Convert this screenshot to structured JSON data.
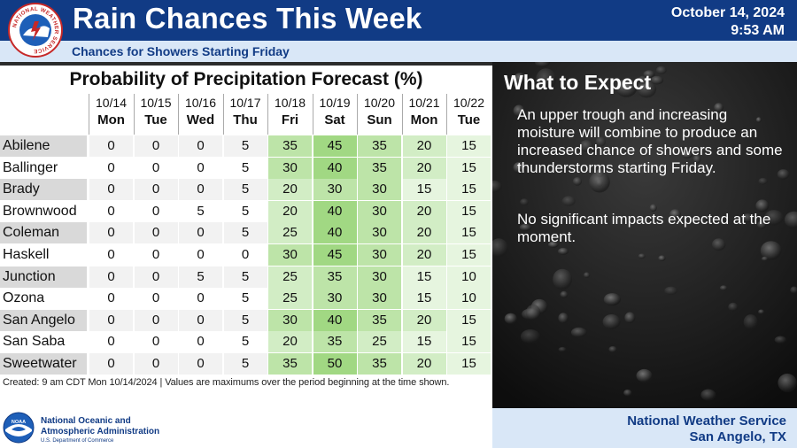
{
  "header": {
    "title": "Rain Chances This Week",
    "date": "October 14, 2024",
    "time": "9:53 AM",
    "subtitle": "Chances for Showers Starting Friday",
    "logo_text": "NATIONAL WEATHER SERVICE"
  },
  "table": {
    "title": "Probability of Precipitation Forecast (%)",
    "columns": [
      {
        "date": "10/14",
        "day": "Mon"
      },
      {
        "date": "10/15",
        "day": "Tue"
      },
      {
        "date": "10/16",
        "day": "Wed"
      },
      {
        "date": "10/17",
        "day": "Thu"
      },
      {
        "date": "10/18",
        "day": "Fri"
      },
      {
        "date": "10/19",
        "day": "Sat"
      },
      {
        "date": "10/20",
        "day": "Sun"
      },
      {
        "date": "10/21",
        "day": "Mon"
      },
      {
        "date": "10/22",
        "day": "Tue"
      }
    ],
    "rows": [
      {
        "city": "Abilene",
        "values": [
          0,
          0,
          0,
          5,
          35,
          45,
          35,
          20,
          15
        ]
      },
      {
        "city": "Ballinger",
        "values": [
          0,
          0,
          0,
          5,
          30,
          40,
          35,
          20,
          15
        ]
      },
      {
        "city": "Brady",
        "values": [
          0,
          0,
          0,
          5,
          20,
          30,
          30,
          15,
          15
        ]
      },
      {
        "city": "Brownwood",
        "values": [
          0,
          0,
          5,
          5,
          20,
          40,
          30,
          20,
          15
        ]
      },
      {
        "city": "Coleman",
        "values": [
          0,
          0,
          0,
          5,
          25,
          40,
          30,
          20,
          15
        ]
      },
      {
        "city": "Haskell",
        "values": [
          0,
          0,
          0,
          0,
          30,
          45,
          30,
          20,
          15
        ]
      },
      {
        "city": "Junction",
        "values": [
          0,
          0,
          5,
          5,
          25,
          35,
          30,
          15,
          10
        ]
      },
      {
        "city": "Ozona",
        "values": [
          0,
          0,
          0,
          5,
          25,
          30,
          30,
          15,
          10
        ]
      },
      {
        "city": "San Angelo",
        "values": [
          0,
          0,
          0,
          5,
          30,
          40,
          35,
          20,
          15
        ]
      },
      {
        "city": "San Saba",
        "values": [
          0,
          0,
          0,
          5,
          20,
          35,
          25,
          15,
          15
        ]
      },
      {
        "city": "Sweetwater",
        "values": [
          0,
          0,
          0,
          5,
          35,
          50,
          35,
          20,
          15
        ]
      }
    ],
    "footnote": "Created: 9 am CDT Mon 10/14/2024  |  Values are maximums over the period beginning at the time shown."
  },
  "expect": {
    "title": "What to Expect",
    "paragraph1": "An upper trough and increasing moisture will combine to produce an increased chance of showers and some thunderstorms starting Friday.",
    "paragraph2": "No significant impacts expected at the moment."
  },
  "footer": {
    "noaa_line1": "National Oceanic and",
    "noaa_line2": "Atmospheric Administration",
    "noaa_dept": "U.S. Department of Commerce",
    "noaa_logo_text": "NOAA",
    "office_line1": "National Weather Service",
    "office_line2": "San Angelo, TX"
  },
  "colors": {
    "header_blue": "#113b85",
    "band_light_blue": "#d9e7f7",
    "city_alt_gray": "#d9d9d9",
    "pop_zero": "#ffffff",
    "pop_10_15": "#e6f5df",
    "pop_20_25": "#d2edc5",
    "pop_30_35": "#bde4a8",
    "pop_40_50": "#a1d883"
  }
}
